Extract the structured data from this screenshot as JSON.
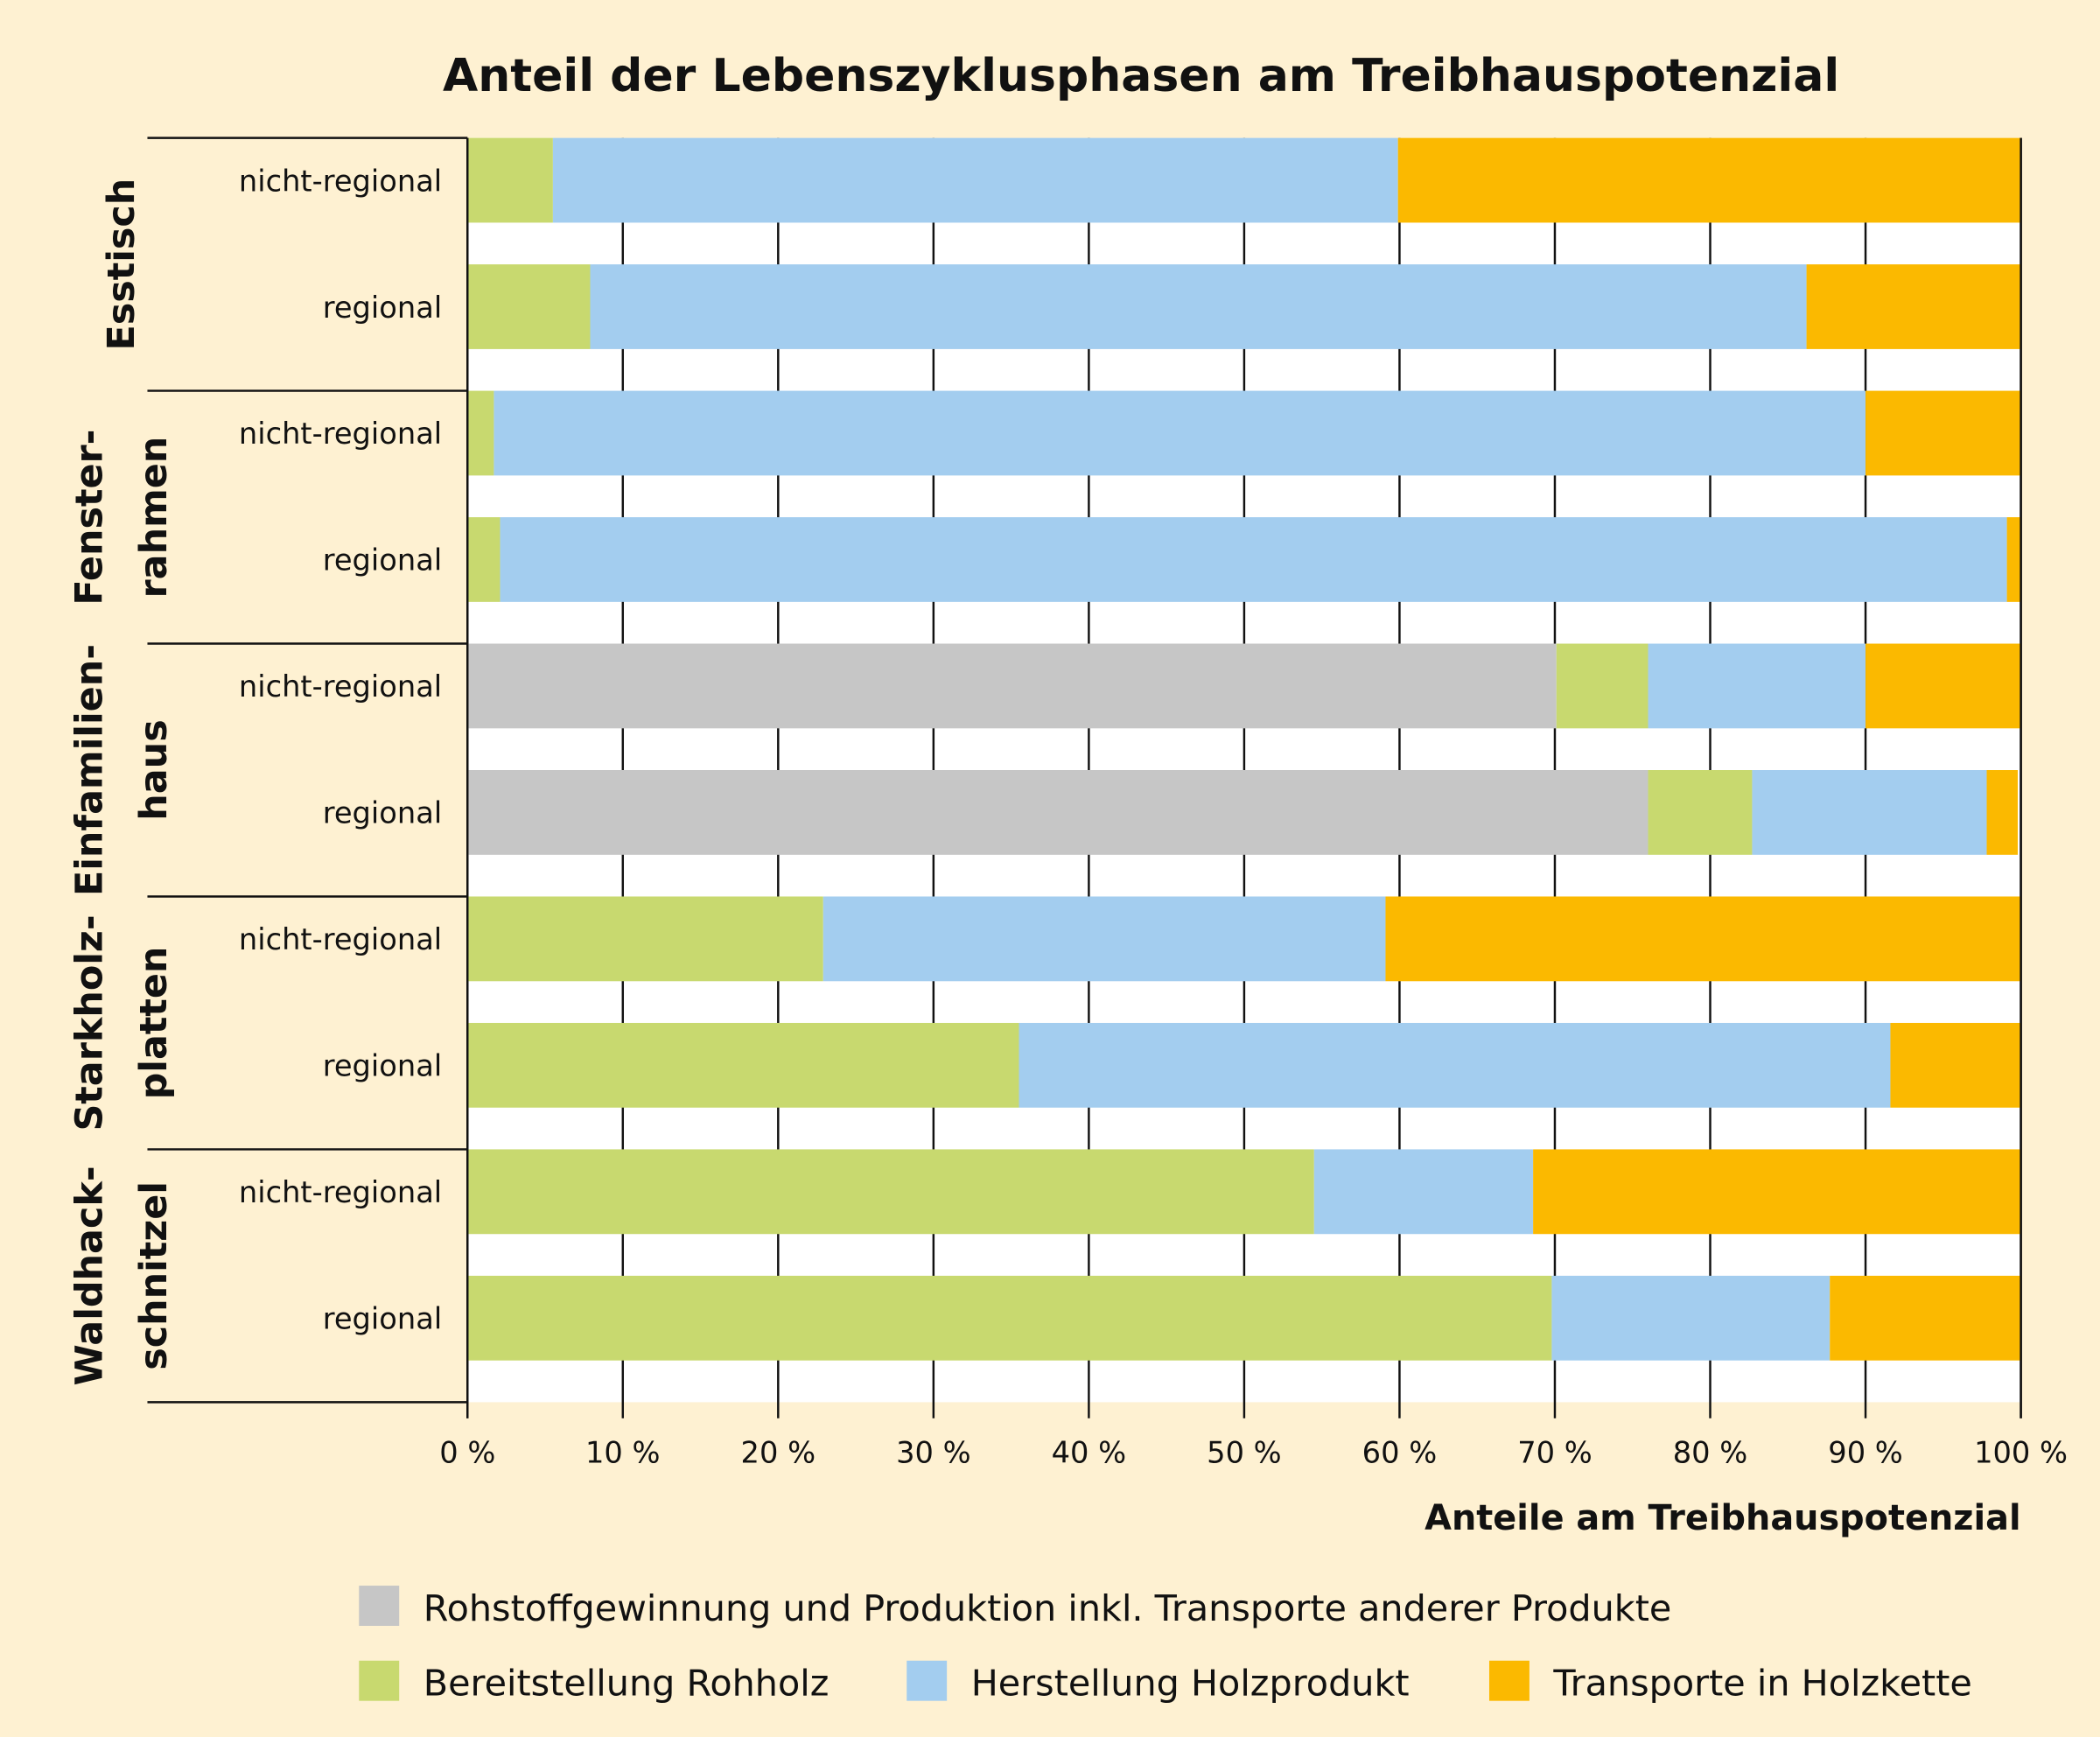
{
  "chart_data": {
    "type": "bar",
    "orientation": "horizontal",
    "stacked": true,
    "title": "Anteil der Lebenszyklusphasen am Treibhauspotenzial",
    "xlabel": "Anteile am Treibhauspotenzial",
    "ylabel": "",
    "xlim": [
      0,
      100
    ],
    "x_ticks": [
      "0 %",
      "10 %",
      "20 %",
      "30 %",
      "40 %",
      "50 %",
      "60 %",
      "70 %",
      "80 %",
      "90 %",
      "100 %"
    ],
    "grid": "vertical lines at every 10 %",
    "legend_position": "bottom",
    "groups": [
      {
        "label_lines": [
          "Esstisch"
        ],
        "categories": [
          "nicht-regional",
          "regional"
        ]
      },
      {
        "label_lines": [
          "Fenster-",
          "rahmen"
        ],
        "categories": [
          "nicht-regional",
          "regional"
        ]
      },
      {
        "label_lines": [
          "Einfamilien-",
          "haus"
        ],
        "categories": [
          "nicht-regional",
          "regional"
        ]
      },
      {
        "label_lines": [
          "Starkholz-",
          "platten"
        ],
        "categories": [
          "nicht-regional",
          "regional"
        ]
      },
      {
        "label_lines": [
          "Waldhack-",
          "schnitzel"
        ],
        "categories": [
          "nicht-regional",
          "regional"
        ]
      }
    ],
    "series": [
      {
        "name": "Rohstoffgewinnung und Produktion inkl. Transporte anderer Produkte",
        "color": "#c6c6c6",
        "values": [
          0,
          0,
          0,
          0,
          70.1,
          76.0,
          0,
          0,
          0,
          0
        ]
      },
      {
        "name": "Bereitstellung Rohholz",
        "color": "#c8d96f",
        "values": [
          5.5,
          7.9,
          1.7,
          2.1,
          5.9,
          6.7,
          22.9,
          35.5,
          54.5,
          69.8
        ]
      },
      {
        "name": "Herstellung Holzprodukt",
        "color": "#a3cdef",
        "values": [
          54.4,
          78.3,
          88.3,
          97.0,
          14.0,
          15.1,
          36.2,
          56.1,
          14.1,
          17.9
        ]
      },
      {
        "name": "Transporte in Holzkette",
        "color": "#fbb900",
        "values": [
          40.1,
          13.8,
          10.0,
          0.9,
          10.0,
          2.0,
          40.9,
          8.4,
          31.4,
          12.3
        ]
      }
    ]
  }
}
